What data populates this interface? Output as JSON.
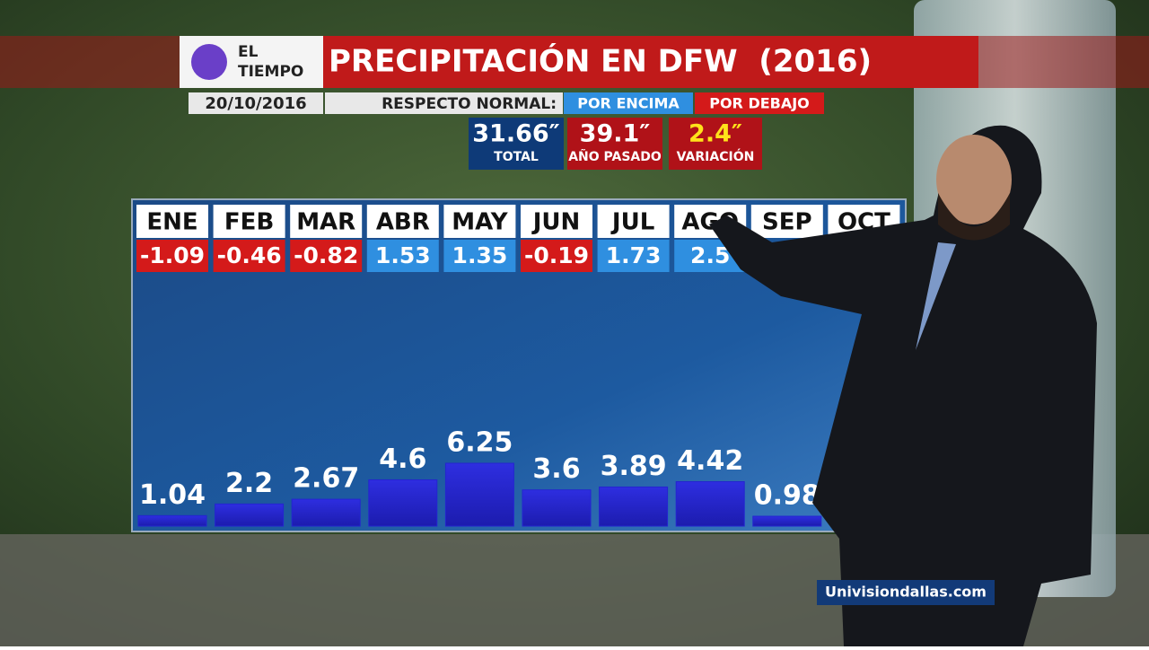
{
  "header": {
    "logo": [
      "EL",
      "TIEMPO"
    ],
    "title": "PRECIPITACIÓN EN DFW  (2016)",
    "date": "20/10/2016",
    "legend_label": "RESPECTO NORMAL:",
    "legend": [
      {
        "label": "POR ENCIMA",
        "color": "#2f8fe0"
      },
      {
        "label": "POR DEBAJO",
        "color": "#d41a1a"
      }
    ]
  },
  "summary": [
    {
      "value": "31.66″",
      "label": "TOTAL",
      "color": "#0e3a78"
    },
    {
      "value": "39.1″",
      "label": "AÑO PASADO",
      "color": "#b01218"
    },
    {
      "value": "2.4″",
      "label": "VARIACIÓN",
      "color": "#b01218"
    }
  ],
  "chart_data": {
    "type": "bar",
    "categories": [
      "ENE",
      "FEB",
      "MAR",
      "ABR",
      "MAY",
      "JUN",
      "JUL",
      "AGO",
      "SEP",
      "OCT"
    ],
    "values": [
      1.04,
      2.2,
      2.67,
      4.6,
      6.25,
      3.6,
      3.89,
      4.42,
      0.98,
      null
    ],
    "anomalies": [
      -1.09,
      -0.46,
      -0.82,
      1.53,
      1.35,
      -0.19,
      1.73,
      2.5,
      null,
      null
    ],
    "color": "#2424d0"
  },
  "footer": {
    "website": "Univisiondallas.com"
  }
}
